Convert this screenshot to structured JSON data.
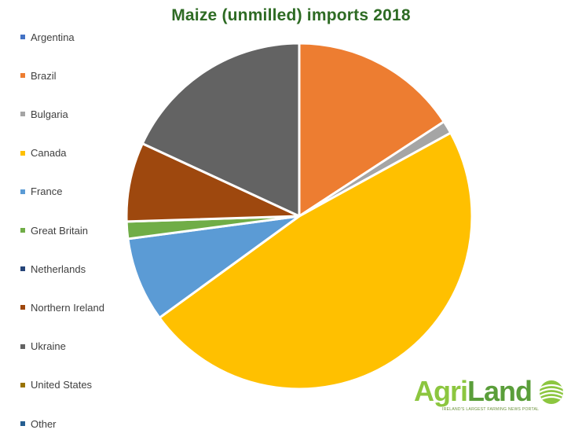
{
  "chart_data": {
    "type": "pie",
    "title": "Maize (unmilled) imports 2018",
    "start": "top",
    "direction": "clockwise",
    "legend_position": "left",
    "slices": [
      {
        "label": "Argentina",
        "value": 0,
        "color": "#4472c4"
      },
      {
        "label": "Brazil",
        "value": 15.8,
        "color": "#ed7d31"
      },
      {
        "label": "Bulgaria",
        "value": 1.2,
        "color": "#a5a5a5"
      },
      {
        "label": "Canada",
        "value": 48.0,
        "color": "#ffc000"
      },
      {
        "label": "France",
        "value": 7.9,
        "color": "#5b9bd5"
      },
      {
        "label": "Great Britain",
        "value": 1.6,
        "color": "#70ad47"
      },
      {
        "label": "Netherlands",
        "value": 0,
        "color": "#264478"
      },
      {
        "label": "Northern Ireland",
        "value": 7.4,
        "color": "#9e480e"
      },
      {
        "label": "Ukraine",
        "value": 18.1,
        "color": "#636363"
      },
      {
        "label": "United States",
        "value": 0,
        "color": "#997300"
      },
      {
        "label": "Other",
        "value": 0,
        "color": "#255e91"
      }
    ]
  },
  "watermark": {
    "brand_part1": "Agri",
    "brand_part2": "Land",
    "tagline": "IRELAND'S LARGEST FARMING NEWS PORTAL"
  }
}
